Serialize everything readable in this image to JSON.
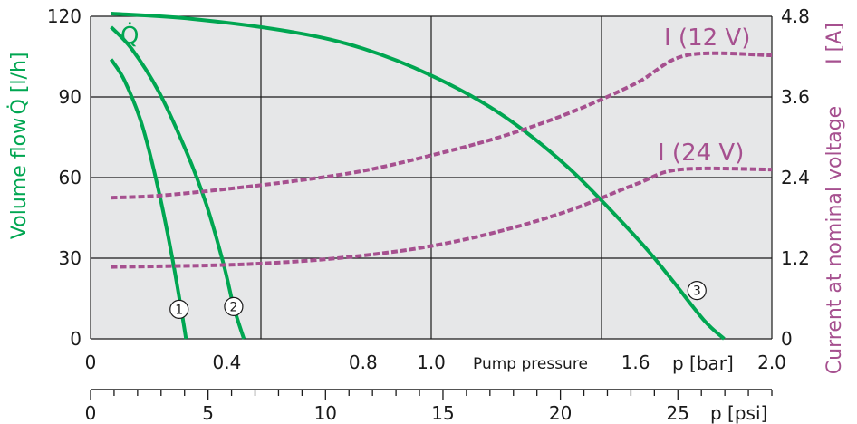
{
  "colors": {
    "flow": "#00a651",
    "current": "#a6508f",
    "plot_bg": "#e6e7e8",
    "grid": "#1a1a1a"
  },
  "chart_data": {
    "type": "line",
    "x_axis": {
      "label": "Pump pressure",
      "unit_label": "p [bar]",
      "range": [
        0,
        2.0
      ],
      "tick_values": [
        0,
        0.4,
        0.8,
        1.0,
        1.6,
        2.0
      ],
      "tick_labels": [
        "0",
        "0.4",
        "0.8",
        "1.0",
        "1.6",
        "2.0"
      ]
    },
    "secondary_x_axis": {
      "unit_label": "p [psi]",
      "range": [
        0,
        29
      ],
      "tick_values": [
        0,
        5,
        10,
        15,
        20,
        25
      ],
      "tick_labels": [
        "0",
        "5",
        "10",
        "15",
        "20",
        "25"
      ]
    },
    "y_left": {
      "label": "Volume flow",
      "unit_label": "Q̇ [l/h]",
      "range": [
        0,
        120
      ],
      "tick_values": [
        0,
        30,
        60,
        90,
        120
      ],
      "tick_labels": [
        "0",
        "30",
        "60",
        "90",
        "120"
      ]
    },
    "y_right": {
      "label": "Current at nominal voltage",
      "unit_label": "I [A]",
      "range": [
        0,
        4.8
      ],
      "tick_values": [
        0,
        1.2,
        2.4,
        3.6,
        4.8
      ],
      "tick_labels": [
        "0",
        "1.2",
        "2.4",
        "3.6",
        "4.8"
      ]
    },
    "grid": true,
    "flow_series_label": "Q̇",
    "series": [
      {
        "name": "1",
        "axis": "left",
        "style": "solid",
        "x": [
          0.06,
          0.1,
          0.15,
          0.2,
          0.24,
          0.27,
          0.28
        ],
        "y": [
          104,
          96,
          80,
          55,
          30,
          8,
          0
        ]
      },
      {
        "name": "2",
        "axis": "left",
        "style": "solid",
        "x": [
          0.06,
          0.12,
          0.2,
          0.28,
          0.34,
          0.39,
          0.42,
          0.45
        ],
        "y": [
          116,
          108,
          92,
          70,
          50,
          28,
          12,
          0
        ]
      },
      {
        "name": "3",
        "axis": "left",
        "style": "solid",
        "x": [
          0.06,
          0.3,
          0.6,
          0.8,
          1.0,
          1.2,
          1.4,
          1.6,
          1.7,
          1.8,
          1.86
        ],
        "y": [
          121,
          119,
          114,
          108,
          98,
          84,
          64,
          38,
          23,
          7,
          0
        ]
      },
      {
        "name": "I (12 V)",
        "axis": "right",
        "style": "dashed",
        "x": [
          0.06,
          0.2,
          0.4,
          0.6,
          0.8,
          1.0,
          1.2,
          1.4,
          1.6,
          1.75,
          2.0
        ],
        "y": [
          2.1,
          2.13,
          2.23,
          2.35,
          2.5,
          2.73,
          3.0,
          3.35,
          3.8,
          4.22,
          4.22
        ]
      },
      {
        "name": "I (24 V)",
        "axis": "right",
        "style": "dashed",
        "x": [
          0.06,
          0.2,
          0.4,
          0.6,
          0.8,
          1.0,
          1.2,
          1.4,
          1.6,
          1.73,
          2.0
        ],
        "y": [
          1.07,
          1.08,
          1.1,
          1.15,
          1.24,
          1.38,
          1.6,
          1.9,
          2.3,
          2.52,
          2.52
        ]
      }
    ],
    "series_labels": [
      {
        "series": "I (12 V)",
        "text": "I (12 V)"
      },
      {
        "series": "I (24 V)",
        "text": "I (24 V)"
      }
    ],
    "curve_markers": [
      {
        "text": "1",
        "x": 0.26,
        "y": 11
      },
      {
        "text": "2",
        "x": 0.42,
        "y": 12
      },
      {
        "text": "3",
        "x": 1.78,
        "y": 18
      }
    ]
  }
}
